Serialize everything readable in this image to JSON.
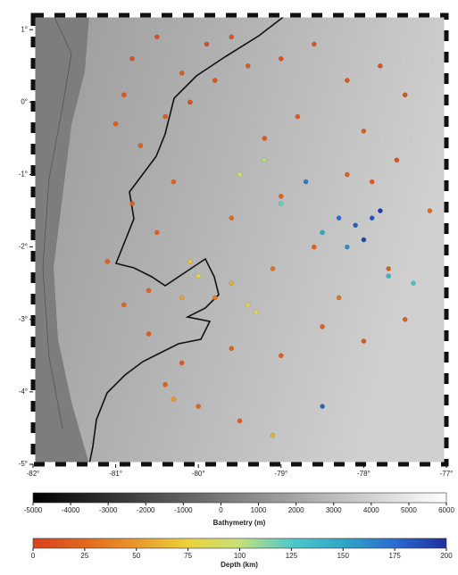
{
  "chart_data": {
    "type": "scatter",
    "xlim": [
      -82,
      -77
    ],
    "ylim": [
      -5,
      1.2
    ],
    "xticks": [
      {
        "value": -82,
        "label": "-82°"
      },
      {
        "value": -81,
        "label": "-81°"
      },
      {
        "value": -80,
        "label": "-80°"
      },
      {
        "value": -79,
        "label": "-79°"
      },
      {
        "value": -78,
        "label": "-78°"
      },
      {
        "value": -77,
        "label": "-77°"
      }
    ],
    "yticks": [
      {
        "value": 1,
        "label": "1°"
      },
      {
        "value": 0,
        "label": "0°"
      },
      {
        "value": -1,
        "label": "-1°"
      },
      {
        "value": -2,
        "label": "-2°"
      },
      {
        "value": -3,
        "label": "-3°"
      },
      {
        "value": -4,
        "label": "-4°"
      },
      {
        "value": -5,
        "label": "-5°"
      }
    ],
    "x": [
      -80.8,
      -80.5,
      -80.2,
      -79.9,
      -79.6,
      -80.9,
      -81.0,
      -80.7,
      -80.4,
      -80.1,
      -79.8,
      -79.4,
      -79.0,
      -78.6,
      -78.2,
      -77.8,
      -77.5,
      -78.8,
      -79.2,
      -78.0,
      -77.9,
      -78.2,
      -77.6,
      -80.3,
      -80.8,
      -80.5,
      -79.6,
      -79.0,
      -78.6,
      -77.7,
      -77.5,
      -78.0,
      -78.5,
      -79.0,
      -79.6,
      -80.2,
      -80.6,
      -80.4,
      -80.0,
      -79.5,
      -80.9,
      -81.1,
      -80.6,
      -79.1,
      -79.8,
      -78.3,
      -77.2,
      -80.1,
      -80.0,
      -79.3,
      -79.4,
      -79.6,
      -80.2,
      -79.5,
      -79.2,
      -80.3,
      -79.1,
      -77.9,
      -78.1,
      -78.3,
      -78.0,
      -77.8,
      -78.5,
      -78.2,
      -77.7,
      -77.4,
      -79.0,
      -78.7,
      -78.5
    ],
    "y": [
      0.6,
      0.9,
      0.4,
      0.8,
      0.9,
      0.1,
      -0.3,
      -0.6,
      -0.2,
      0.0,
      0.3,
      0.5,
      0.6,
      0.8,
      0.3,
      0.5,
      0.1,
      -0.2,
      -0.5,
      -0.4,
      -1.1,
      -1.0,
      -0.8,
      -1.1,
      -1.4,
      -1.8,
      -1.6,
      -1.3,
      -2.0,
      -2.3,
      -3.0,
      -3.3,
      -3.1,
      -3.5,
      -3.4,
      -3.6,
      -3.2,
      -3.9,
      -4.2,
      -4.4,
      -2.8,
      -2.2,
      -2.6,
      -2.3,
      -2.7,
      -2.7,
      -1.5,
      -2.2,
      -2.4,
      -2.9,
      -2.8,
      -2.5,
      -2.7,
      -1.0,
      -0.8,
      -4.1,
      -4.6,
      -1.6,
      -1.7,
      -1.6,
      -1.9,
      -1.5,
      -1.8,
      -2.0,
      -2.4,
      -2.5,
      -1.4,
      -1.1,
      -4.2
    ],
    "depth": [
      12,
      10,
      15,
      8,
      12,
      14,
      18,
      20,
      16,
      10,
      12,
      15,
      10,
      12,
      14,
      10,
      12,
      16,
      14,
      18,
      15,
      20,
      12,
      22,
      18,
      20,
      25,
      20,
      22,
      18,
      20,
      15,
      20,
      18,
      20,
      15,
      18,
      20,
      22,
      18,
      25,
      20,
      22,
      30,
      35,
      30,
      25,
      70,
      80,
      85,
      75,
      60,
      55,
      95,
      105,
      50,
      60,
      185,
      180,
      175,
      190,
      195,
      150,
      160,
      140,
      130,
      120,
      170,
      180
    ],
    "bathymetry_colorbar": {
      "label": "Bathymetry (m)",
      "lim": [
        -5000,
        6000
      ],
      "ticks": [
        -5000,
        -4000,
        -3000,
        -2000,
        -1000,
        0,
        1000,
        2000,
        3000,
        4000,
        5000,
        6000
      ]
    },
    "depth_colorbar": {
      "label": "Depth (km)",
      "lim": [
        0,
        200
      ],
      "ticks": [
        0,
        25,
        50,
        75,
        100,
        125,
        150,
        175,
        200
      ],
      "colors": [
        "#d8401c",
        "#e2681e",
        "#e8982a",
        "#ecd23a",
        "#c6e07a",
        "#4ec9c9",
        "#2fa6c6",
        "#2a6ccf",
        "#1e2e9e"
      ]
    }
  }
}
